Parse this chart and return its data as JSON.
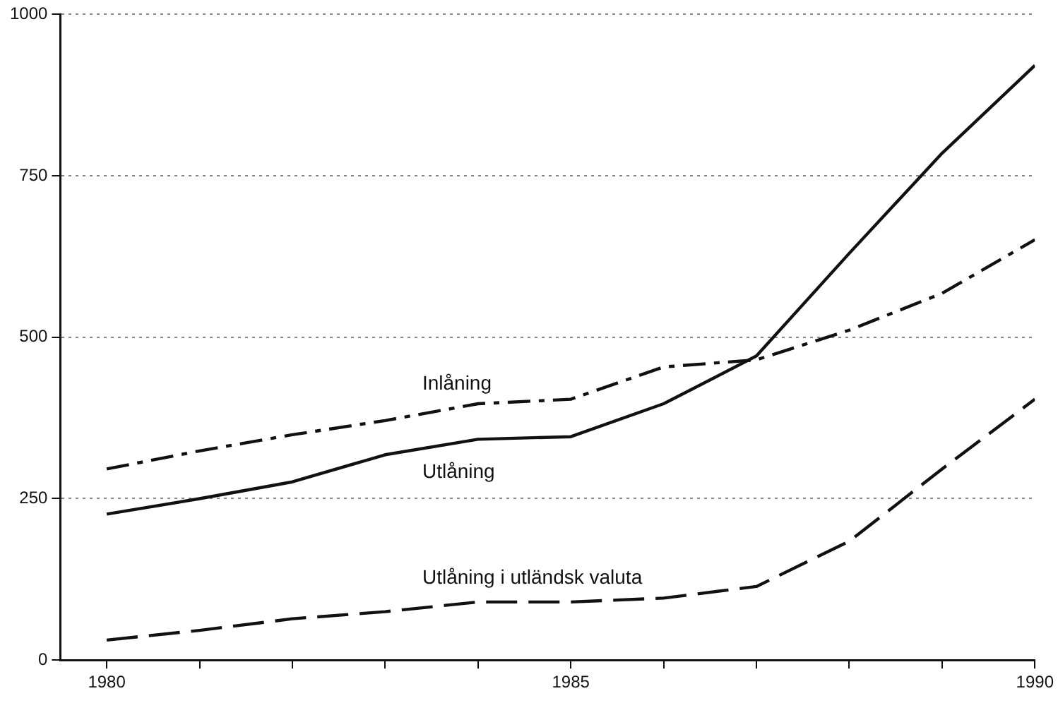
{
  "chart_data": {
    "type": "line",
    "x": [
      1980,
      1981,
      1982,
      1983,
      1984,
      1985,
      1986,
      1987,
      1988,
      1989,
      1990
    ],
    "series": [
      {
        "name": "Inlåning",
        "color": "#111111",
        "line_style": "dashdot",
        "values": [
          296,
          324,
          349,
          371,
          397,
          404,
          454,
          465,
          511,
          568,
          651
        ]
      },
      {
        "name": "Utlåning",
        "color": "#111111",
        "line_style": "solid",
        "values": [
          226,
          250,
          276,
          318,
          342,
          346,
          397,
          471,
          630,
          785,
          921
        ]
      },
      {
        "name": "Utlåning i utländsk valuta",
        "color": "#111111",
        "line_style": "dashed",
        "values": [
          31,
          46,
          64,
          75,
          90,
          90,
          96,
          114,
          184,
          296,
          404
        ]
      }
    ],
    "xlim": [
      1979.5,
      1990
    ],
    "xticks": [
      1980,
      {
        "value": 1981,
        "label": null
      },
      {
        "value": 1982,
        "label": null
      },
      {
        "value": 1983,
        "label": null
      },
      {
        "value": 1984,
        "label": null
      },
      1985,
      {
        "value": 1986,
        "label": null
      },
      {
        "value": 1987,
        "label": null
      },
      {
        "value": 1988,
        "label": null
      },
      {
        "value": 1989,
        "label": null
      },
      1990
    ],
    "ylim": [
      0,
      1000
    ],
    "yticks": [
      0,
      250,
      500,
      750,
      1000
    ],
    "grid": "y",
    "legend": false,
    "marker": "none"
  }
}
